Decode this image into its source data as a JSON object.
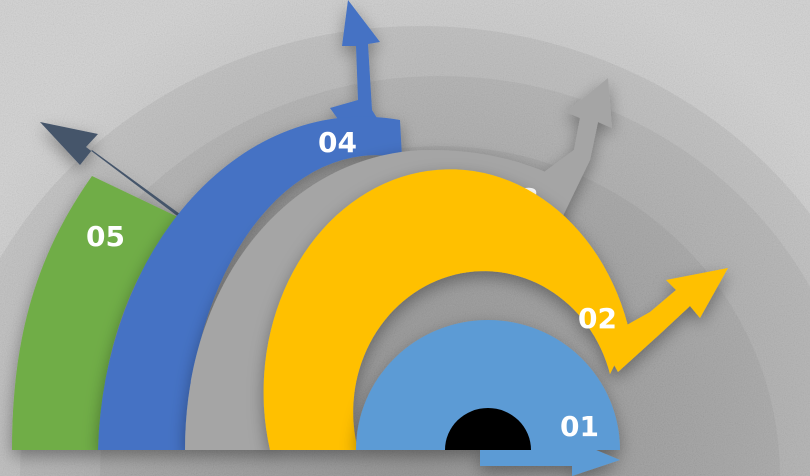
{
  "diagram": {
    "stages": [
      {
        "label": "01",
        "color": "#5b9bd5"
      },
      {
        "label": "02",
        "color": "#ffc000"
      },
      {
        "label": "03",
        "color": "#a5a5a5"
      },
      {
        "label": "04",
        "color": "#4472c4"
      },
      {
        "label": "05",
        "color": "#70ad47"
      }
    ],
    "arrow_colors": {
      "a01": "#5b9bd5",
      "a02": "#ffc000",
      "a03": "#a5a5a5",
      "a04": "#4472c4",
      "a05": "#44546a"
    },
    "hub_color": "#000000",
    "background_color": "#cfcfcf"
  }
}
